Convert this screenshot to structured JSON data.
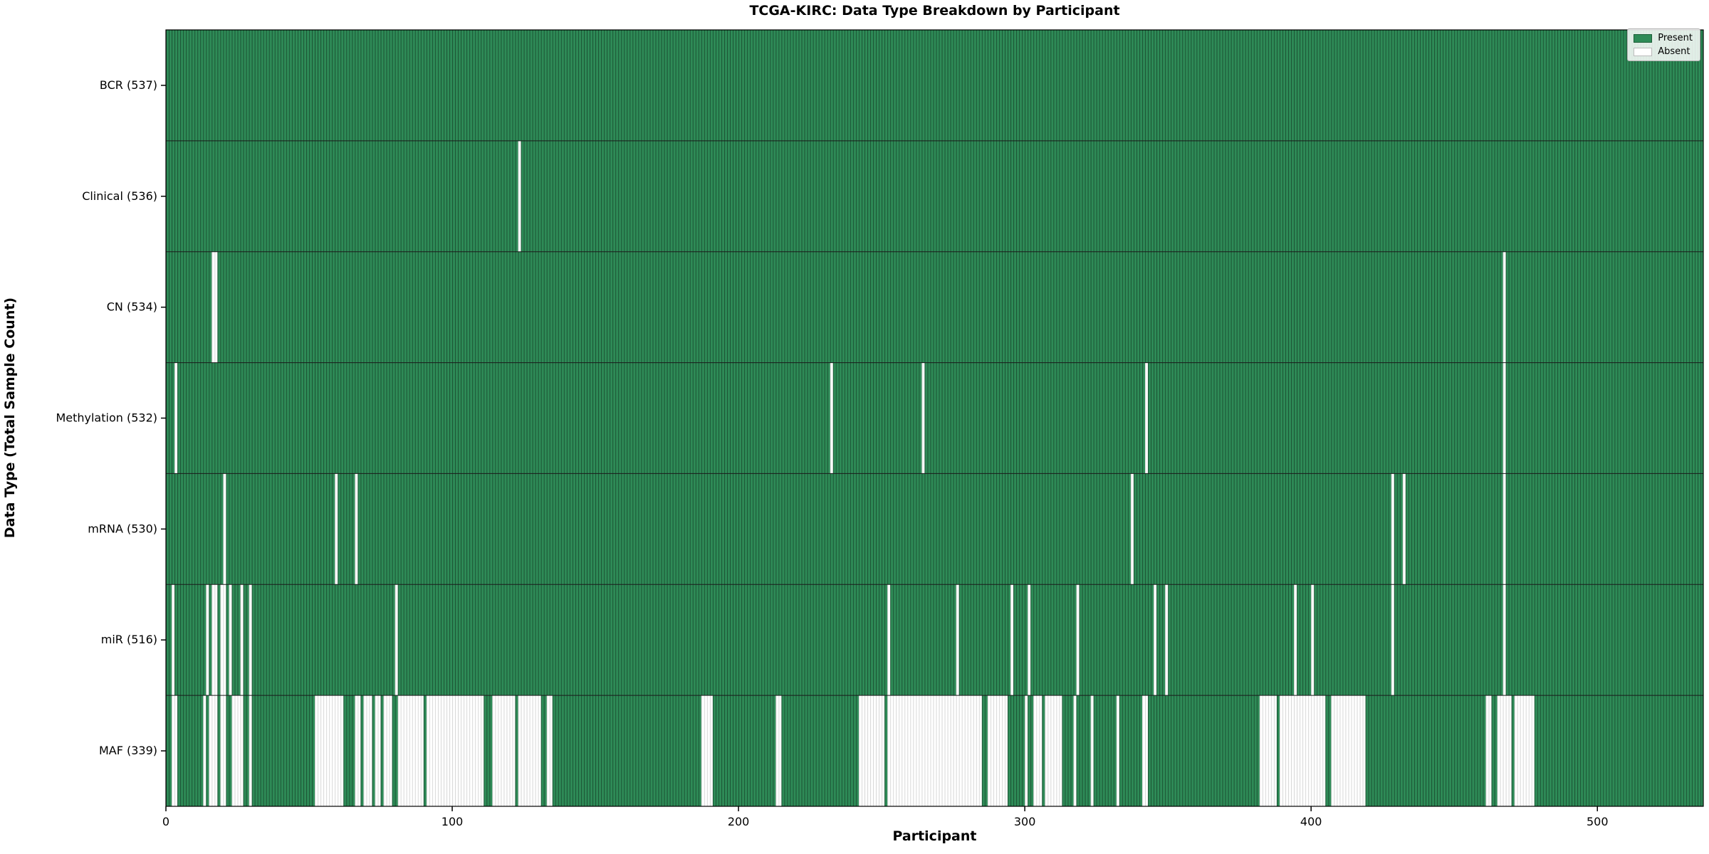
{
  "title": "TCGA-KIRC: Data Type Breakdown by Participant",
  "axes": {
    "xlabel": "Participant",
    "ylabel": "Data Type (Total Sample Count)"
  },
  "legend": {
    "present_label": "Present",
    "absent_label": "Absent"
  },
  "colors": {
    "present_fill": "#2e8b57",
    "present_edge": "rgba(0,0,0,0.40)",
    "absent_fill": "#ffffff",
    "absent_edge": "#d8d8d8",
    "row_divider": "#1a1a1a",
    "plot_border": "#000000",
    "tick_color": "#000000"
  },
  "chart_data": {
    "type": "heatmap",
    "description": "Presence/absence matrix: one column per participant, one row per data type. Green = Present, White = Absent.",
    "participants": 537,
    "x_ticks": [
      0,
      100,
      200,
      300,
      400,
      500
    ],
    "xlim": [
      0,
      537
    ],
    "legend_position": "upper right",
    "rows": [
      {
        "name": "BCR",
        "label": "BCR (537)",
        "present_count": 537,
        "absent_ranges": []
      },
      {
        "name": "Clinical",
        "label": "Clinical (536)",
        "present_count": 536,
        "absent_ranges": [
          [
            123,
            123
          ]
        ]
      },
      {
        "name": "CN",
        "label": "CN (534)",
        "present_count": 534,
        "absent_ranges": [
          [
            16,
            17
          ],
          [
            467,
            467
          ]
        ]
      },
      {
        "name": "Methylation",
        "label": "Methylation (532)",
        "present_count": 532,
        "absent_ranges": [
          [
            3,
            3
          ],
          [
            232,
            232
          ],
          [
            264,
            264
          ],
          [
            342,
            342
          ],
          [
            467,
            467
          ]
        ]
      },
      {
        "name": "mRNA",
        "label": "mRNA (530)",
        "present_count": 530,
        "absent_ranges": [
          [
            20,
            20
          ],
          [
            59,
            59
          ],
          [
            66,
            66
          ],
          [
            337,
            337
          ],
          [
            428,
            428
          ],
          [
            432,
            432
          ],
          [
            467,
            467
          ]
        ]
      },
      {
        "name": "miR",
        "label": "miR (516)",
        "present_count": 516,
        "absent_ranges": [
          [
            2,
            2
          ],
          [
            14,
            14
          ],
          [
            16,
            17
          ],
          [
            19,
            20
          ],
          [
            22,
            22
          ],
          [
            26,
            26
          ],
          [
            29,
            29
          ],
          [
            80,
            80
          ],
          [
            252,
            252
          ],
          [
            276,
            276
          ],
          [
            295,
            295
          ],
          [
            301,
            301
          ],
          [
            318,
            318
          ],
          [
            345,
            345
          ],
          [
            349,
            349
          ],
          [
            394,
            394
          ],
          [
            400,
            400
          ],
          [
            428,
            428
          ],
          [
            467,
            467
          ]
        ]
      },
      {
        "name": "MAF",
        "label": "MAF (339)",
        "present_count": 339,
        "absent_ranges": [
          [
            2,
            3
          ],
          [
            13,
            13
          ],
          [
            15,
            17
          ],
          [
            19,
            20
          ],
          [
            23,
            26
          ],
          [
            29,
            29
          ],
          [
            52,
            61
          ],
          [
            66,
            67
          ],
          [
            69,
            71
          ],
          [
            73,
            74
          ],
          [
            76,
            78
          ],
          [
            81,
            89
          ],
          [
            91,
            110
          ],
          [
            114,
            121
          ],
          [
            123,
            130
          ],
          [
            133,
            134
          ],
          [
            187,
            190
          ],
          [
            213,
            214
          ],
          [
            242,
            250
          ],
          [
            252,
            284
          ],
          [
            287,
            293
          ],
          [
            300,
            300
          ],
          [
            303,
            305
          ],
          [
            307,
            312
          ],
          [
            317,
            317
          ],
          [
            323,
            323
          ],
          [
            332,
            332
          ],
          [
            341,
            342
          ],
          [
            382,
            387
          ],
          [
            389,
            404
          ],
          [
            407,
            418
          ],
          [
            461,
            462
          ],
          [
            465,
            469
          ],
          [
            471,
            477
          ]
        ]
      }
    ]
  }
}
